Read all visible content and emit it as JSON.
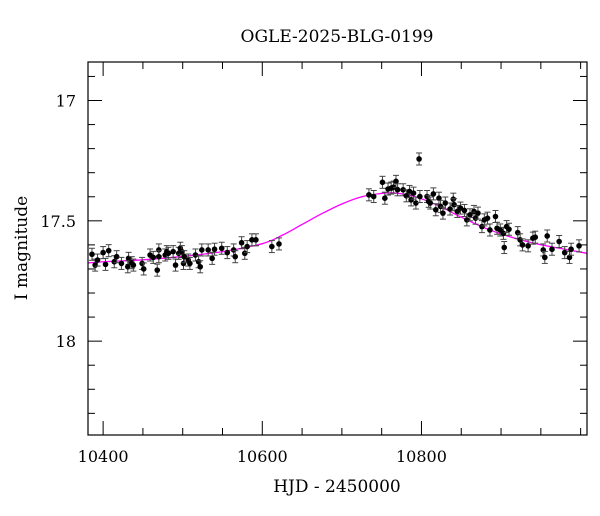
{
  "chart_data": {
    "type": "scatter",
    "title": "OGLE-2025-BLG-0199",
    "xlabel": "HJD - 2450000",
    "ylabel": "I magnitude",
    "xlim": [
      10381,
      11008
    ],
    "ylim": [
      18.39,
      16.84
    ],
    "y_inverted": true,
    "grid": false,
    "x_ticks": [
      10400,
      10600,
      10800
    ],
    "x_tick_labels": [
      "10400",
      "10600",
      "10800"
    ],
    "x_minor_step": 50,
    "y_ticks": [
      17,
      17.5,
      18
    ],
    "y_tick_labels": [
      "17",
      "17.5",
      "18"
    ],
    "y_minor_step": 0.1,
    "colors": {
      "points": "#000000",
      "model": "#ff00ff"
    },
    "series": [
      {
        "kind": "points_with_errorbars",
        "error": 0.025,
        "x": [
          10386,
          10390,
          10393,
          10400,
          10403,
          10407,
          10414,
          10417,
          10423,
          10432,
          10431,
          10436,
          10438,
          10449,
          10451,
          10459,
          10463,
          10468,
          10470,
          10470,
          10478,
          10480,
          10482,
          10488,
          10491,
          10495,
          10497,
          10499,
          10501,
          10502,
          10507,
          10509,
          10516,
          10520,
          10522,
          10524,
          10532,
          10537,
          10540,
          10549,
          10556,
          10564,
          10566,
          10574,
          10578,
          10581,
          10587,
          10592,
          10612,
          10621,
          10734,
          10740,
          10751,
          10754,
          10758,
          10762,
          10765,
          10768,
          10770,
          10777,
          10781,
          10785,
          10787,
          10790,
          10793,
          10797,
          10798,
          10807,
          10809,
          10811,
          10815,
          10818,
          10822,
          10824,
          10827,
          10830,
          10836,
          10840,
          10841,
          10845,
          10849,
          10854,
          10857,
          10861,
          10866,
          10868,
          10871,
          10876,
          10879,
          10883,
          10886,
          10893,
          10895,
          10899,
          10903,
          10907,
          10910,
          10904,
          10921,
          10924,
          10927,
          10934,
          10940,
          10943,
          10953,
          10955,
          10958,
          10964,
          10973,
          10980,
          10986,
          10988,
          10998
        ],
        "y": [
          17.639,
          17.684,
          17.663,
          17.632,
          17.681,
          17.624,
          17.67,
          17.649,
          17.677,
          17.656,
          17.691,
          17.674,
          17.684,
          17.677,
          17.7,
          17.642,
          17.652,
          17.705,
          17.621,
          17.649,
          17.642,
          17.628,
          17.635,
          17.628,
          17.684,
          17.635,
          17.614,
          17.628,
          17.677,
          17.649,
          17.663,
          17.677,
          17.642,
          17.67,
          17.691,
          17.621,
          17.621,
          17.656,
          17.618,
          17.614,
          17.632,
          17.621,
          17.649,
          17.591,
          17.635,
          17.607,
          17.579,
          17.579,
          17.607,
          17.596,
          17.392,
          17.399,
          17.34,
          17.406,
          17.368,
          17.364,
          17.36,
          17.336,
          17.371,
          17.371,
          17.396,
          17.378,
          17.413,
          17.385,
          17.426,
          17.243,
          17.399,
          17.399,
          17.419,
          17.426,
          17.388,
          17.454,
          17.406,
          17.44,
          17.468,
          17.426,
          17.451,
          17.41,
          17.433,
          17.461,
          17.447,
          17.457,
          17.496,
          17.475,
          17.461,
          17.489,
          17.468,
          17.524,
          17.496,
          17.489,
          17.538,
          17.482,
          17.531,
          17.538,
          17.552,
          17.524,
          17.535,
          17.611,
          17.549,
          17.579,
          17.6,
          17.604,
          17.572,
          17.568,
          17.621,
          17.652,
          17.563,
          17.618,
          17.586,
          17.632,
          17.652,
          17.618,
          17.604
        ]
      },
      {
        "kind": "model_line",
        "x": [
          10381,
          10400,
          10450,
          10500,
          10550,
          10600,
          10625,
          10650,
          10675,
          10700,
          10725,
          10750,
          10765,
          10790,
          10820,
          10850,
          10880,
          10910,
          10940,
          10970,
          11008
        ],
        "y": [
          17.675,
          17.67,
          17.662,
          17.648,
          17.628,
          17.595,
          17.56,
          17.515,
          17.47,
          17.43,
          17.4,
          17.386,
          17.384,
          17.398,
          17.435,
          17.485,
          17.53,
          17.565,
          17.592,
          17.612,
          17.635
        ]
      }
    ]
  }
}
